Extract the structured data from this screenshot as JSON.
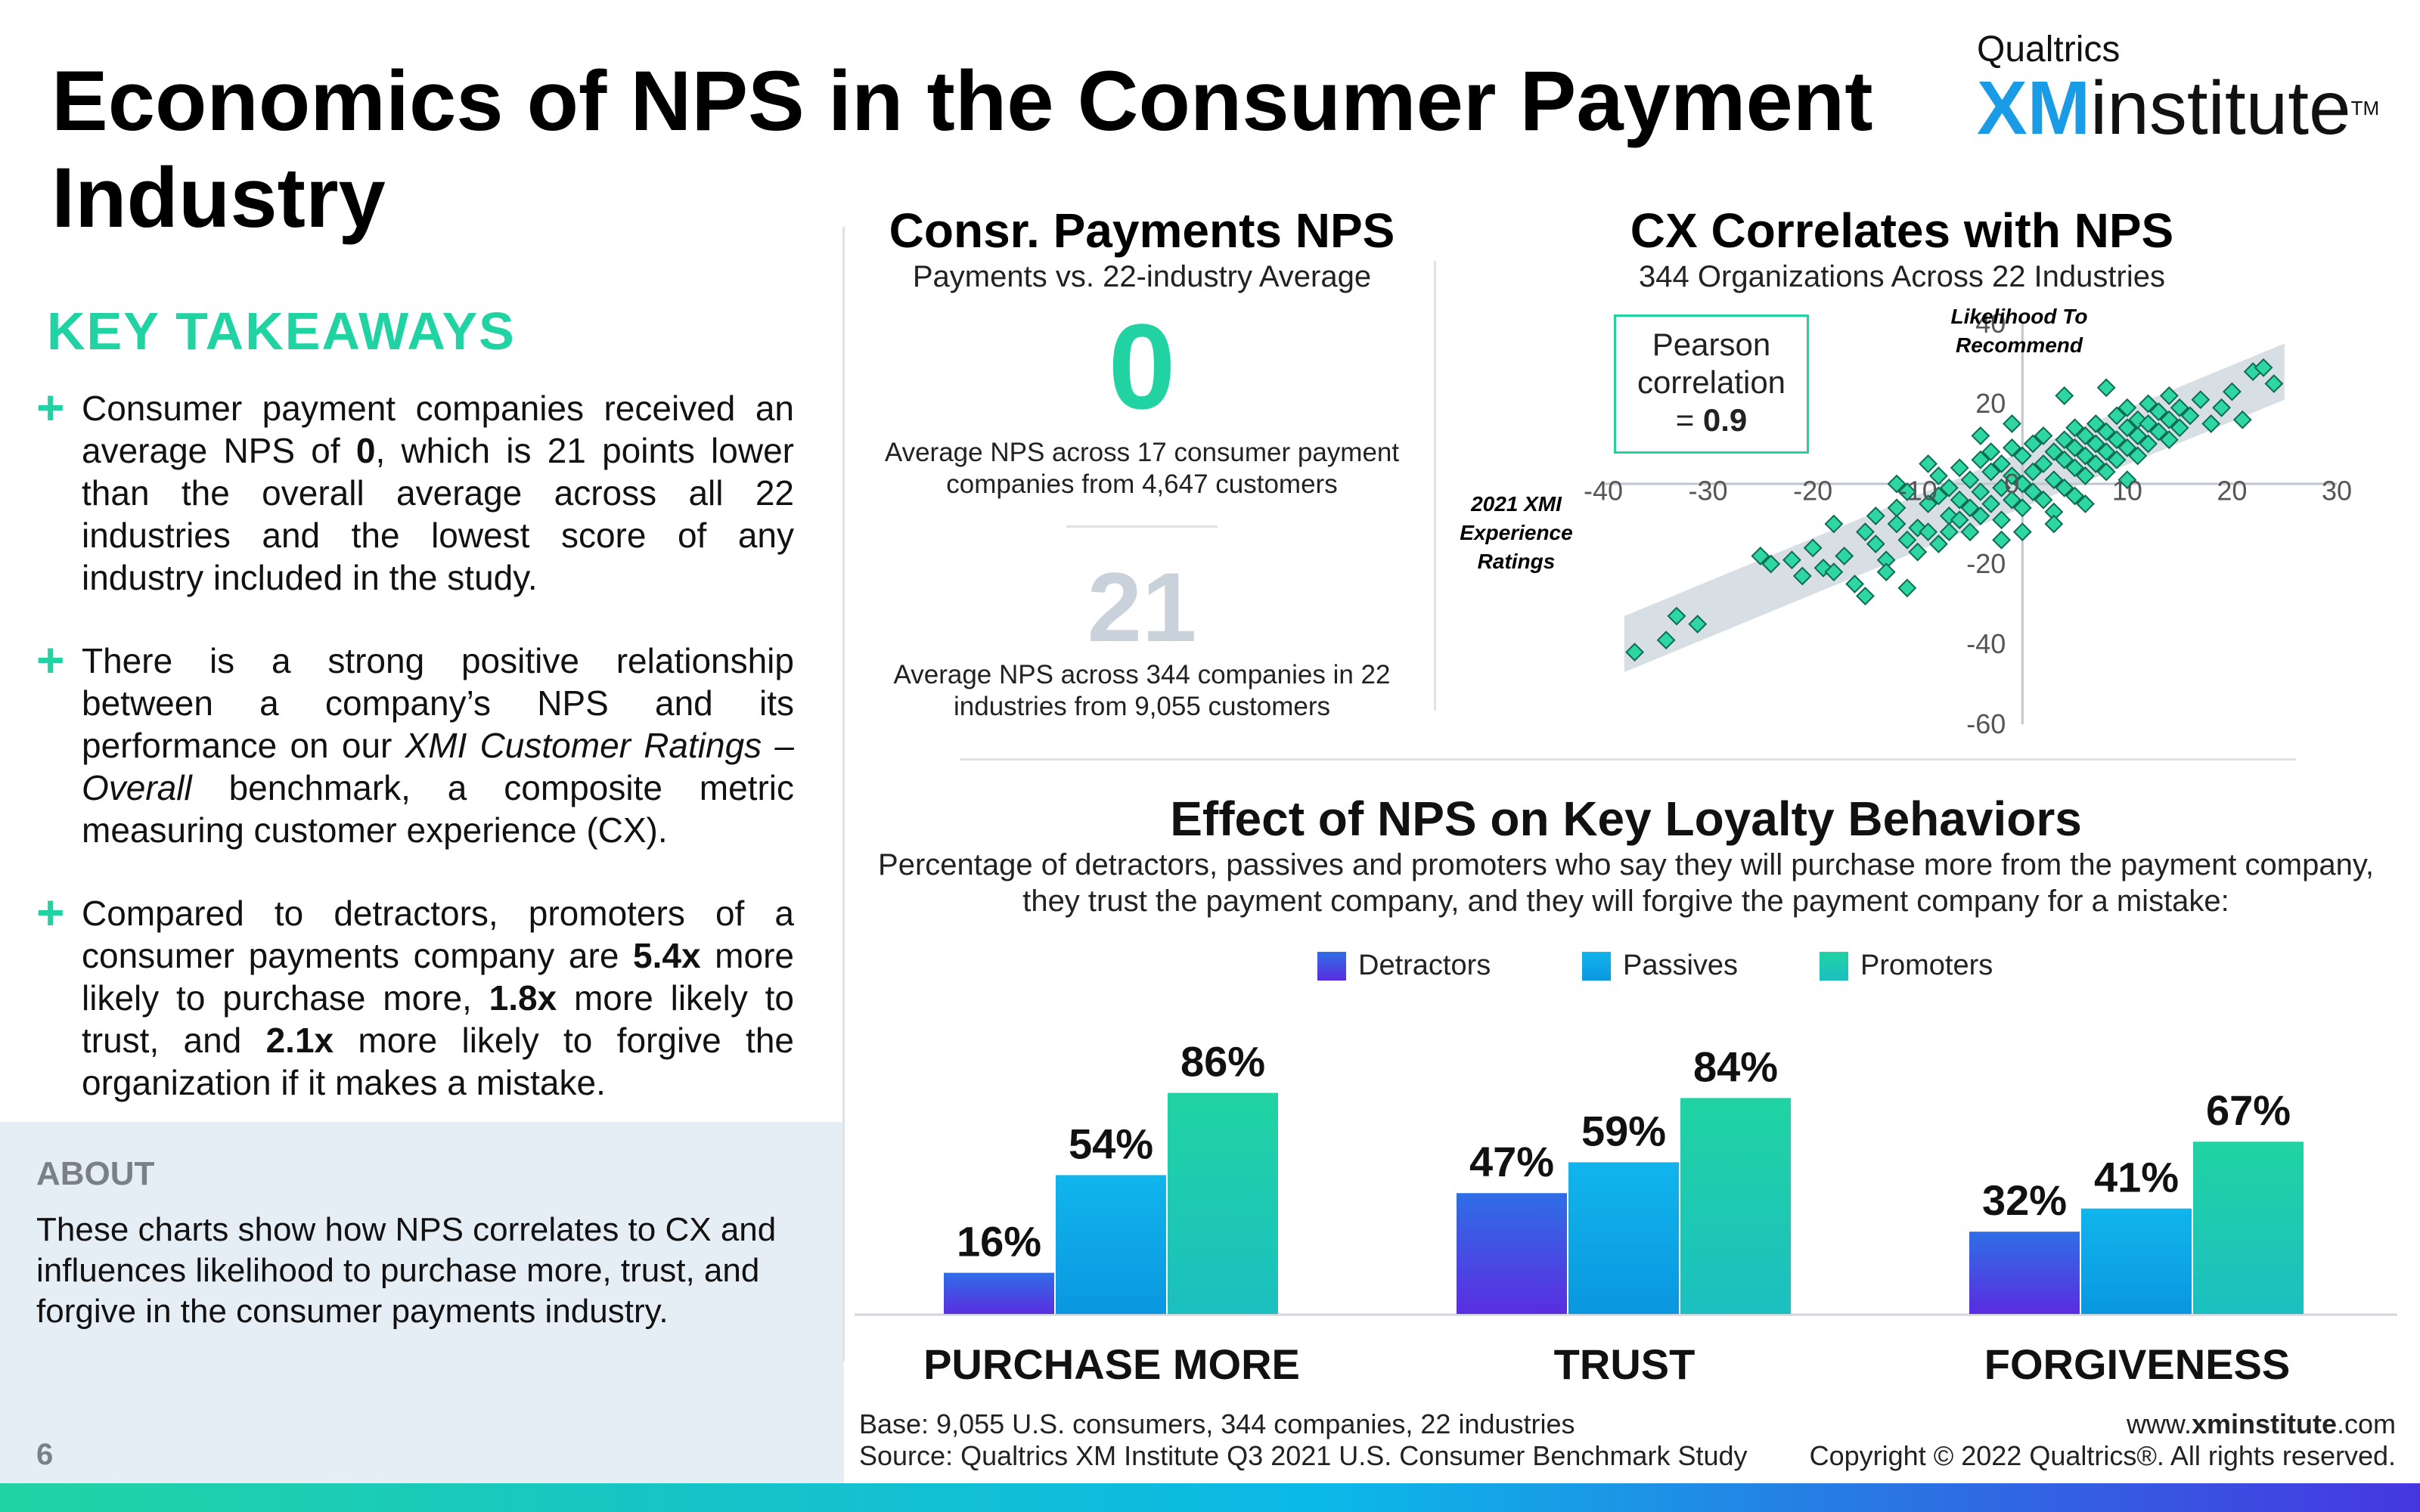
{
  "title": "Economics of NPS in the Consumer Payment Industry",
  "logo": {
    "top": "Qualtrics",
    "xm": "XM",
    "rest": "institute",
    "tm": "TM"
  },
  "key_takeaways": {
    "heading": "KEY TAKEAWAYS",
    "items": [
      {
        "pre": "Consumer payment companies received an average NPS of ",
        "b1": "0",
        "post": ", which is 21 points lower than the overall average across all 22 industries and the lowest score of any industry included in the study."
      },
      {
        "pre": "There is a strong positive relationship between a company’s NPS and its performance on our ",
        "i1": "XMI Customer Ratings – Overall",
        "post": " benchmark, a composite metric measuring customer experience (CX)."
      },
      {
        "pre": "Compared to detractors, promoters of a consumer payments company are ",
        "b1": "5.4x",
        "mid1": " more likely to purchase more, ",
        "b2": "1.8x",
        "mid2": " more likely to trust, and ",
        "b3": "2.1x",
        "post": " more likely to forgive the organization if it makes a mistake."
      }
    ]
  },
  "about": {
    "heading": "ABOUT",
    "text": "These charts show how NPS correlates to CX and influences likelihood to purchase more, trust, and forgive in the consumer payments industry."
  },
  "page_number": "6",
  "nps_panel": {
    "title": "Consr. Payments NPS",
    "subtitle": "Payments vs. 22-industry Average",
    "value": "0",
    "value_desc": "Average NPS across 17 consumer payment companies from 4,647 customers",
    "avg": "21",
    "avg_desc": "Average NPS across 344 companies in 22 industries from 9,055 customers"
  },
  "correlation_panel": {
    "title": "CX Correlates with NPS",
    "subtitle": "344 Organizations Across 22 Industries",
    "pearson_pre": "Pearson correlation",
    "pearson_eq": "= ",
    "pearson_value": "0.9",
    "y_caption_1": "Likelihood To",
    "y_caption_2": "Recommend",
    "x_caption_1": "2021 XMI",
    "x_caption_2": "Experience",
    "x_caption_3": "Ratings"
  },
  "loyalty": {
    "title": "Effect of NPS on Key Loyalty Behaviors",
    "description": "Percentage of detractors, passives and promoters who say they will purchase more from the payment company, they trust the payment company, and they will forgive the payment company for a mistake:"
  },
  "footer": {
    "base": "Base: 9,055 U.S. consumers, 344 companies, 22 industries",
    "source": "Source: Qualtrics XM Institute Q3 2021 U.S. Consumer Benchmark Study",
    "site_pre": "www.",
    "site_bold": "xminstitute",
    "site_post": ".com",
    "copyright": "Copyright © 2022 Qualtrics®. All rights reserved."
  },
  "colors": {
    "detractors": "#4a3ae0",
    "passives": "#11b5ec",
    "promoters": "#21d3a3",
    "accent": "#21d3a3"
  },
  "chart_data": [
    {
      "type": "scatter",
      "title": "CX Correlates with NPS",
      "subtitle": "344 Organizations Across 22 Industries",
      "xlabel": "2021 XMI Experience Ratings",
      "ylabel": "Likelihood To Recommend",
      "xlim": [
        -40,
        30
      ],
      "ylim": [
        -60,
        40
      ],
      "x_ticks": [
        -40,
        -30,
        -20,
        -10,
        0,
        10,
        20,
        30
      ],
      "y_ticks": [
        -60,
        -40,
        -20,
        0,
        20,
        40
      ],
      "annotation": "Pearson correlation = 0.9",
      "points": [
        [
          -37,
          -42
        ],
        [
          -34,
          -39
        ],
        [
          -33,
          -33
        ],
        [
          -31,
          -35
        ],
        [
          -25,
          -18
        ],
        [
          -24,
          -20
        ],
        [
          -22,
          -19
        ],
        [
          -21,
          -23
        ],
        [
          -20,
          -16
        ],
        [
          -19,
          -21
        ],
        [
          -18,
          -22
        ],
        [
          -17,
          -18
        ],
        [
          -16,
          -25
        ],
        [
          -15,
          -12
        ],
        [
          -14,
          -15
        ],
        [
          -14,
          -8
        ],
        [
          -13,
          -19
        ],
        [
          -13,
          -22
        ],
        [
          -12,
          -10
        ],
        [
          -12,
          -6
        ],
        [
          -11,
          -14
        ],
        [
          -11,
          -2
        ],
        [
          -10,
          -11
        ],
        [
          -10,
          -17
        ],
        [
          -9,
          -5
        ],
        [
          -9,
          -12
        ],
        [
          -8,
          -3
        ],
        [
          -8,
          -15
        ],
        [
          -8,
          2
        ],
        [
          -7,
          -8
        ],
        [
          -7,
          -1
        ],
        [
          -7,
          -12
        ],
        [
          -6,
          -4
        ],
        [
          -6,
          4
        ],
        [
          -6,
          -9
        ],
        [
          -5,
          -6
        ],
        [
          -5,
          1
        ],
        [
          -5,
          -12
        ],
        [
          -4,
          -2
        ],
        [
          -4,
          6
        ],
        [
          -4,
          -8
        ],
        [
          -3,
          3
        ],
        [
          -3,
          -5
        ],
        [
          -3,
          8
        ],
        [
          -2,
          -1
        ],
        [
          -2,
          5
        ],
        [
          -2,
          -9
        ],
        [
          -1,
          2
        ],
        [
          -1,
          -4
        ],
        [
          -1,
          9
        ],
        [
          0,
          0
        ],
        [
          0,
          -6
        ],
        [
          0,
          7
        ],
        [
          0,
          -12
        ],
        [
          1,
          3
        ],
        [
          1,
          -2
        ],
        [
          1,
          10
        ],
        [
          2,
          5
        ],
        [
          2,
          -4
        ],
        [
          2,
          12
        ],
        [
          3,
          1
        ],
        [
          3,
          8
        ],
        [
          3,
          -7
        ],
        [
          4,
          6
        ],
        [
          4,
          11
        ],
        [
          4,
          -1
        ],
        [
          5,
          4
        ],
        [
          5,
          9
        ],
        [
          5,
          14
        ],
        [
          5,
          -3
        ],
        [
          6,
          7
        ],
        [
          6,
          12
        ],
        [
          6,
          2
        ],
        [
          7,
          10
        ],
        [
          7,
          5
        ],
        [
          7,
          15
        ],
        [
          8,
          8
        ],
        [
          8,
          13
        ],
        [
          8,
          3
        ],
        [
          9,
          11
        ],
        [
          9,
          17
        ],
        [
          9,
          6
        ],
        [
          10,
          9
        ],
        [
          10,
          14
        ],
        [
          10,
          19
        ],
        [
          11,
          12
        ],
        [
          11,
          7
        ],
        [
          11,
          16
        ],
        [
          12,
          15
        ],
        [
          12,
          20
        ],
        [
          12,
          10
        ],
        [
          13,
          13
        ],
        [
          13,
          18
        ],
        [
          14,
          16
        ],
        [
          14,
          11
        ],
        [
          15,
          19
        ],
        [
          15,
          14
        ],
        [
          16,
          17
        ],
        [
          17,
          21
        ],
        [
          18,
          15
        ],
        [
          19,
          19
        ],
        [
          20,
          23
        ],
        [
          21,
          16
        ],
        [
          22,
          28
        ],
        [
          23,
          29
        ],
        [
          24,
          25
        ],
        [
          -15,
          -28
        ],
        [
          -11,
          -26
        ],
        [
          -2,
          -14
        ],
        [
          3,
          -10
        ],
        [
          6,
          -5
        ],
        [
          10,
          1
        ],
        [
          -18,
          -10
        ],
        [
          -9,
          5
        ],
        [
          -4,
          12
        ],
        [
          4,
          22
        ],
        [
          8,
          24
        ],
        [
          -1,
          15
        ],
        [
          -12,
          0
        ],
        [
          14,
          22
        ]
      ]
    },
    {
      "type": "bar",
      "title": "Effect of NPS on Key Loyalty Behaviors",
      "categories": [
        "PURCHASE MORE",
        "TRUST",
        "FORGIVENESS"
      ],
      "series": [
        {
          "name": "Detractors",
          "values": [
            16,
            47,
            32
          ]
        },
        {
          "name": "Passives",
          "values": [
            54,
            59,
            41
          ]
        },
        {
          "name": "Promoters",
          "values": [
            86,
            84,
            67
          ]
        }
      ],
      "ylim": [
        0,
        100
      ],
      "value_suffix": "%",
      "legend": "top-center"
    }
  ]
}
